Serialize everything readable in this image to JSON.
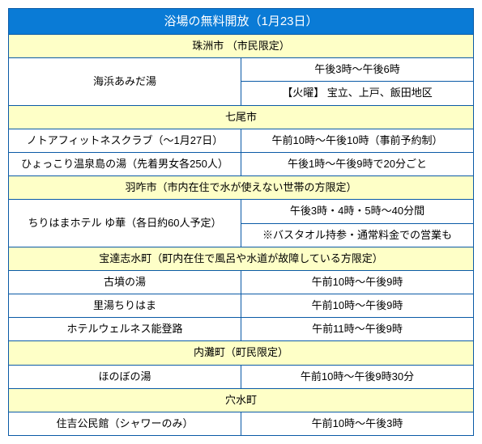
{
  "title": "浴場の無料開放（1月23日）",
  "colors": {
    "header_bg": "#0a7bd6",
    "header_text": "#ffffff",
    "highlight_bg": "#feffc7",
    "border": "#0a5aa6"
  },
  "sections": [
    {
      "header": "珠洲市 （市民限定）",
      "rows": [
        {
          "name": "海浜あみだ湯",
          "times": [
            "午後3時～午後6時",
            "【火曜】 宝立、上戸、飯田地区"
          ]
        }
      ]
    },
    {
      "header": "七尾市",
      "rows": [
        {
          "name": "ノトアフィットネスクラブ（～1月27日）",
          "times": [
            "午前10時～午後10時（事前予約制）"
          ]
        },
        {
          "name": "ひょっこり温泉島の湯（先着男女各250人）",
          "times": [
            "午後1時～午後9時で20分ごと"
          ]
        }
      ]
    },
    {
      "header": "羽咋市（市内在住で水が使えない世帯の方限定）",
      "rows": [
        {
          "name": "ちりはまホテル ゆ華（各日約60人予定）",
          "times": [
            "午後3時・4時・5時～40分間",
            "※バスタオル持参・通常料金での営業も"
          ]
        }
      ]
    },
    {
      "header": "宝達志水町（町内在住で風呂や水道が故障している方限定）",
      "rows": [
        {
          "name": "古墳の湯",
          "times": [
            "午前10時～午後9時"
          ]
        },
        {
          "name": "里湯ちりはま",
          "times": [
            "午前10時～午後9時"
          ]
        },
        {
          "name": "ホテルウェルネス能登路",
          "times": [
            "午前11時～午後9時"
          ]
        }
      ]
    },
    {
      "header": "内灘町（町民限定）",
      "rows": [
        {
          "name": "ほのぼの湯",
          "times": [
            "午前10時～午後9時30分"
          ]
        }
      ]
    },
    {
      "header": "穴水町",
      "rows": [
        {
          "name": "住吉公民館（シャワーのみ）",
          "times": [
            "午前10時～午後3時"
          ]
        }
      ]
    }
  ]
}
